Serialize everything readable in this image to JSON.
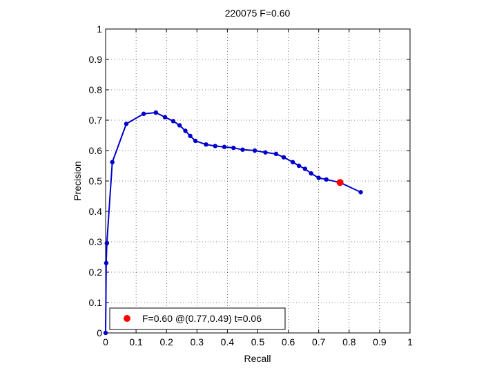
{
  "chart_data": {
    "type": "line",
    "title": "220075 F=0.60",
    "xlabel": "Recall",
    "ylabel": "Precision",
    "xlim": [
      0,
      1
    ],
    "ylim": [
      0,
      1
    ],
    "xticks": [
      0,
      0.1,
      0.2,
      0.3,
      0.4,
      0.5,
      0.6,
      0.7,
      0.8,
      0.9,
      1
    ],
    "yticks": [
      0,
      0.1,
      0.2,
      0.3,
      0.4,
      0.5,
      0.6,
      0.7,
      0.8,
      0.9,
      1
    ],
    "xtick_labels": [
      "0",
      "0.1",
      "0.2",
      "0.3",
      "0.4",
      "0.5",
      "0.6",
      "0.7",
      "0.8",
      "0.9",
      "1"
    ],
    "ytick_labels": [
      "0",
      "0.1",
      "0.2",
      "0.3",
      "0.4",
      "0.5",
      "0.6",
      "0.7",
      "0.8",
      "0.9",
      "1"
    ],
    "grid": true,
    "legend_position": "bottom-left",
    "legend_label": "F=0.60 @(0.77,0.49) t=0.06",
    "series": [
      {
        "color": "#0000cc",
        "x": [
          0.0,
          0.002,
          0.004,
          0.022,
          0.068,
          0.125,
          0.165,
          0.195,
          0.222,
          0.243,
          0.262,
          0.278,
          0.295,
          0.33,
          0.36,
          0.39,
          0.42,
          0.45,
          0.49,
          0.525,
          0.56,
          0.585,
          0.615,
          0.635,
          0.655,
          0.675,
          0.7,
          0.725,
          0.77,
          0.838
        ],
        "y": [
          0.0,
          0.23,
          0.295,
          0.562,
          0.688,
          0.721,
          0.725,
          0.71,
          0.697,
          0.683,
          0.665,
          0.648,
          0.632,
          0.62,
          0.615,
          0.612,
          0.609,
          0.603,
          0.6,
          0.594,
          0.589,
          0.578,
          0.562,
          0.55,
          0.54,
          0.525,
          0.51,
          0.505,
          0.495,
          0.463
        ]
      }
    ],
    "highlight": {
      "x": 0.77,
      "y": 0.495,
      "color": "#ff0000"
    }
  }
}
